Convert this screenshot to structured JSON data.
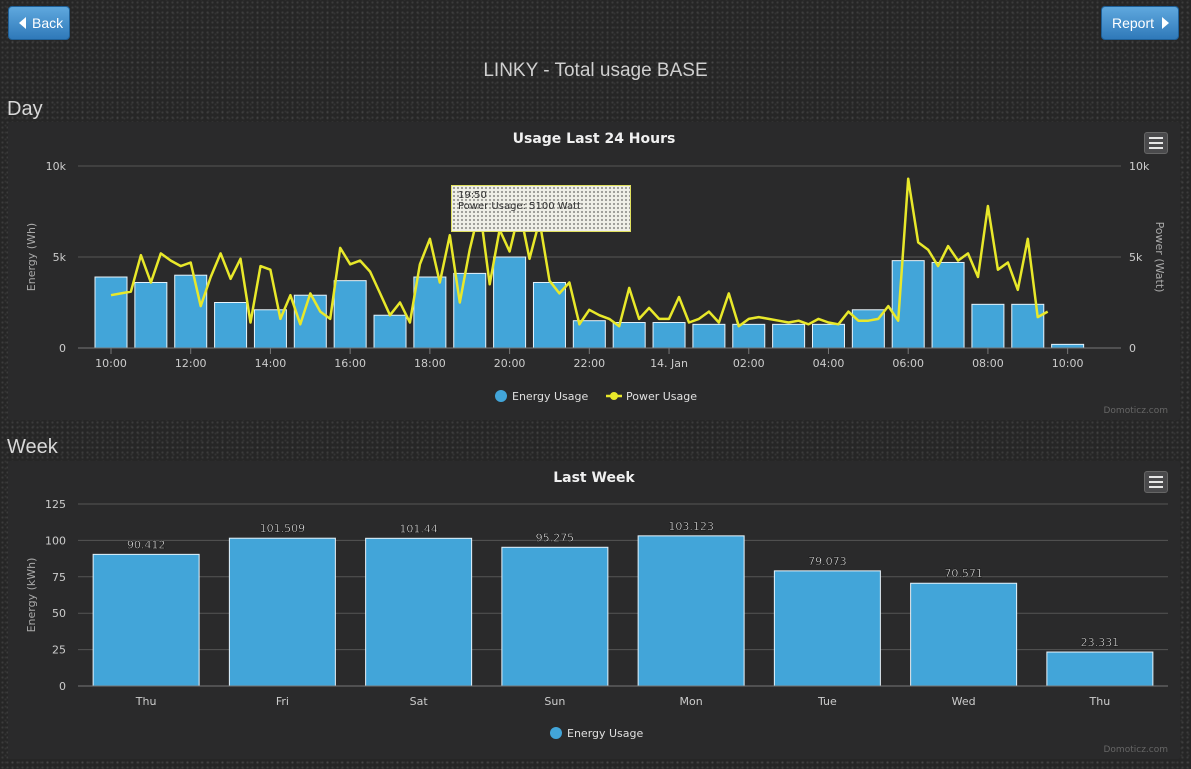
{
  "nav": {
    "back_label": "Back",
    "report_label": "Report"
  },
  "page": {
    "title": "LINKY - Total usage BASE",
    "day_label": "Day",
    "week_label": "Week"
  },
  "credit": "Domoticz.com",
  "icons": {
    "back": "left-triangle-icon",
    "report": "right-triangle-icon",
    "menu": "hamburger-menu-icon"
  },
  "colors": {
    "energy": "#42a5d9",
    "power": "#e8e82a",
    "button": "#3d8ccd"
  },
  "chart_data": [
    {
      "type": "bar+line",
      "title": "Usage Last 24 Hours",
      "ylabel": "Energy (Wh)",
      "y2label": "Power (Watt)",
      "ylim": [
        0,
        10000
      ],
      "y2lim": [
        0,
        10000
      ],
      "yticks": [
        "0",
        "5k",
        "10k"
      ],
      "y2ticks": [
        "0",
        "5k",
        "10k"
      ],
      "xtick_labels": [
        "10:00",
        "12:00",
        "14:00",
        "16:00",
        "18:00",
        "20:00",
        "22:00",
        "14. Jan",
        "02:00",
        "04:00",
        "06:00",
        "08:00",
        "10:00"
      ],
      "legend": [
        "Energy Usage",
        "Power Usage"
      ],
      "legend_position": "bottom",
      "series": [
        {
          "name": "Energy Usage",
          "kind": "bar",
          "x_hours": [
            0,
            1,
            2,
            3,
            4,
            5,
            6,
            7,
            8,
            9,
            10,
            11,
            12,
            13,
            14,
            15,
            16,
            17,
            18,
            19,
            20,
            21,
            22,
            23,
            24
          ],
          "values": [
            3900,
            3600,
            4000,
            2500,
            2100,
            2900,
            3700,
            1800,
            3900,
            4100,
            5000,
            3600,
            1500,
            1400,
            1400,
            1300,
            1300,
            1300,
            1300,
            2100,
            4800,
            4700,
            2400,
            2400,
            200
          ]
        },
        {
          "name": "Power Usage",
          "kind": "line",
          "x_hours": [
            0,
            0.25,
            0.5,
            0.75,
            1,
            1.25,
            1.5,
            1.75,
            2,
            2.25,
            2.5,
            2.75,
            3,
            3.25,
            3.5,
            3.75,
            4,
            4.25,
            4.5,
            4.75,
            5,
            5.25,
            5.5,
            5.75,
            6,
            6.25,
            6.5,
            6.75,
            7,
            7.25,
            7.5,
            7.75,
            8,
            8.25,
            8.5,
            8.75,
            9,
            9.25,
            9.5,
            9.75,
            10,
            10.25,
            10.5,
            10.75,
            11,
            11.25,
            11.5,
            11.75,
            12,
            12.25,
            12.5,
            12.75,
            13,
            13.25,
            13.5,
            13.75,
            14,
            14.25,
            14.5,
            14.75,
            15,
            15.25,
            15.5,
            15.75,
            16,
            16.25,
            16.5,
            16.75,
            17,
            17.25,
            17.5,
            17.75,
            18,
            18.25,
            18.5,
            18.75,
            19,
            19.25,
            19.5,
            19.75,
            20,
            20.25,
            20.5,
            20.75,
            21,
            21.25,
            21.5,
            21.75,
            22,
            22.25,
            22.5,
            22.75,
            23,
            23.25,
            23.5
          ],
          "values": [
            2900,
            3000,
            3100,
            5100,
            3600,
            5200,
            4800,
            4500,
            4700,
            2300,
            3900,
            5200,
            3800,
            4900,
            1400,
            4500,
            4300,
            1600,
            2900,
            1300,
            3000,
            2000,
            1600,
            5500,
            4600,
            4800,
            4200,
            3000,
            1800,
            2500,
            1400,
            4600,
            6000,
            3600,
            6200,
            2500,
            5400,
            7700,
            3500,
            6500,
            5300,
            7600,
            4900,
            7000,
            3700,
            3000,
            3600,
            1300,
            2100,
            1800,
            1600,
            1200,
            3300,
            1600,
            2200,
            1600,
            1600,
            2800,
            1400,
            1600,
            2000,
            1400,
            3000,
            1200,
            1600,
            1700,
            1600,
            1500,
            1400,
            1500,
            1300,
            1600,
            1400,
            1300,
            2000,
            1500,
            1500,
            1600,
            2300,
            1500,
            9300,
            5800,
            5400,
            4500,
            5600,
            4800,
            5200,
            3900,
            7800,
            4300,
            4700,
            3200,
            6000,
            1700,
            2000
          ]
        }
      ],
      "tooltip": {
        "time": "19:50",
        "text": "Power Usage: 5100 Watt"
      }
    },
    {
      "type": "bar",
      "title": "Last Week",
      "ylabel": "Energy (kWh)",
      "ylim": [
        0,
        125
      ],
      "yticks": [
        "0",
        "25",
        "50",
        "75",
        "100",
        "125"
      ],
      "categories": [
        "Thu",
        "Fri",
        "Sat",
        "Sun",
        "Mon",
        "Tue",
        "Wed",
        "Thu"
      ],
      "values": [
        90.412,
        101.509,
        101.44,
        95.275,
        103.123,
        79.073,
        70.571,
        23.331
      ],
      "data_labels": [
        "90.412",
        "101.509",
        "101.44",
        "95.275",
        "103.123",
        "79.073",
        "70.571",
        "23.331"
      ],
      "legend": [
        "Energy Usage"
      ],
      "legend_position": "bottom"
    }
  ]
}
